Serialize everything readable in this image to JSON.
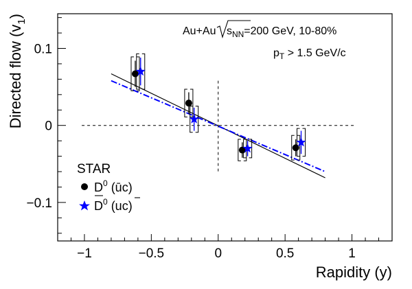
{
  "chart_data": {
    "type": "scatter",
    "xlabel": "Rapidity (y)",
    "ylabel": "Directed flow (v",
    "ylabel_sub": "1",
    "ylabel_close": ")",
    "xlim": [
      -1.2,
      1.3
    ],
    "ylim": [
      -0.15,
      0.145
    ],
    "xticks": [
      -1,
      -0.5,
      0,
      0.5,
      1
    ],
    "xtick_labels": [
      "−1",
      "−0.5",
      "0",
      "0.5",
      "1"
    ],
    "yticks": [
      -0.1,
      0,
      0.1
    ],
    "ytick_labels": [
      "−0.1",
      "0",
      "0.1"
    ],
    "annotation_collision": {
      "prefix": "Au+Au ",
      "root": "s",
      "root_sub": "NN",
      "suffix": "=200 GeV, 10-80%"
    },
    "annotation_pt": {
      "base": "p",
      "sub": "T",
      "text": " > 1.5 GeV/c"
    },
    "legend_title": "STAR",
    "series": [
      {
        "name_base": "D",
        "name_sup": "0",
        "name_quark": "(ūc)",
        "color": "#000000",
        "marker": "circle",
        "x": [
          -0.62,
          -0.22,
          0.18,
          0.58
        ],
        "y": [
          0.067,
          0.029,
          -0.032,
          -0.029
        ],
        "stat_err": [
          0.017,
          0.014,
          0.01,
          0.011
        ],
        "sys_err": [
          0.022,
          0.018,
          0.014,
          0.016
        ],
        "fit": {
          "x": [
            -0.8,
            0.8
          ],
          "y": [
            0.067,
            -0.068
          ],
          "style": "solid"
        }
      },
      {
        "name_base": "D",
        "name_sup": "0",
        "name_quark": "(u",
        "name_quark_bar": "c",
        "name_quark_close": ")",
        "color": "#0000ff",
        "marker": "star",
        "x": [
          -0.58,
          -0.18,
          0.22,
          0.62
        ],
        "y": [
          0.07,
          0.008,
          -0.03,
          -0.022
        ],
        "stat_err": [
          0.018,
          0.015,
          0.01,
          0.015
        ],
        "sys_err": [
          0.023,
          0.017,
          0.012,
          0.018
        ],
        "fit": {
          "x": [
            -0.8,
            0.8
          ],
          "y": [
            0.058,
            -0.06
          ],
          "style": "dash-dot"
        }
      }
    ],
    "reference_lines": {
      "horizontal_y": 0,
      "vertical_x": 0
    }
  }
}
